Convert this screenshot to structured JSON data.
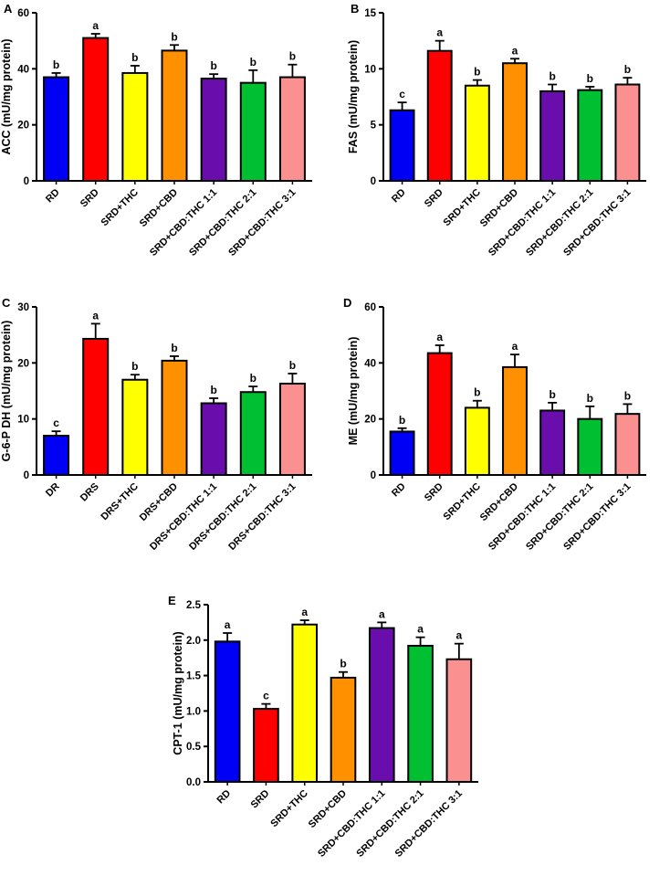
{
  "bar_colors": [
    "#0000f5",
    "#ff0000",
    "#ffff00",
    "#ff9100",
    "#6a0dad",
    "#00bf30",
    "#fa9090"
  ],
  "chart_data": [
    {
      "type": "bar",
      "panel": "A",
      "ylabel": "ACC (mU/mg protein)",
      "ylim": [
        0,
        60
      ],
      "yticks": [
        0,
        20,
        40,
        60
      ],
      "ytick_labels": [
        "0",
        "20",
        "40",
        "60"
      ],
      "categories": [
        "RD",
        "SRD",
        "SRD+THC",
        "SRD+CBD",
        "SRD+CBD:THC 1:1",
        "SRD+CBD:THC 2:1",
        "SRD+CBD:THC 3:1"
      ],
      "values": [
        37,
        51,
        38.5,
        46.5,
        36.5,
        35,
        37
      ],
      "errors": [
        1.5,
        1.5,
        2.6,
        2,
        1.6,
        4.5,
        4.5
      ],
      "sig_letters": [
        "b",
        "a",
        "b",
        "b",
        "b",
        "b",
        "b"
      ]
    },
    {
      "type": "bar",
      "panel": "B",
      "ylabel": "FAS (mU/mg protein)",
      "ylim": [
        0,
        15
      ],
      "yticks": [
        0,
        5,
        10,
        15
      ],
      "ytick_labels": [
        "0",
        "5",
        "10",
        "15"
      ],
      "categories": [
        "RD",
        "SRD",
        "SRD+THC",
        "SRD+CBD",
        "SRD+CBD:THC 1:1",
        "SRD+CBD:THC 2:1",
        "SRD+CBD:THC 3:1"
      ],
      "values": [
        6.3,
        11.6,
        8.5,
        10.5,
        8.0,
        8.1,
        8.6
      ],
      "errors": [
        0.7,
        0.9,
        0.5,
        0.4,
        0.6,
        0.3,
        0.6
      ],
      "sig_letters": [
        "c",
        "a",
        "b",
        "a",
        "b",
        "b",
        "b"
      ]
    },
    {
      "type": "bar",
      "panel": "C",
      "ylabel": "G-6-P DH (mU/mg protein)",
      "ylim": [
        0,
        30
      ],
      "yticks": [
        0,
        10,
        20,
        30
      ],
      "ytick_labels": [
        "0",
        "10",
        "20",
        "30"
      ],
      "categories": [
        "DR",
        "DRS",
        "DRS+THC",
        "DRS+CBD",
        "DRS+CBD:THC 1:1",
        "DRS+CBD:THC 2:1",
        "DRS+CBD:THC 3:1"
      ],
      "values": [
        7.0,
        24.3,
        17.0,
        20.4,
        12.8,
        14.8,
        16.3
      ],
      "errors": [
        0.8,
        2.7,
        0.9,
        0.8,
        0.9,
        1.0,
        1.8
      ],
      "sig_letters": [
        "c",
        "a",
        "b",
        "b",
        "b",
        "b",
        "b"
      ]
    },
    {
      "type": "bar",
      "panel": "D",
      "ylabel": "ME (mU/mg protein)",
      "ylim": [
        0,
        60
      ],
      "yticks": [
        0,
        20,
        40,
        60
      ],
      "ytick_labels": [
        "0",
        "20",
        "40",
        "60"
      ],
      "categories": [
        "RD",
        "SRD",
        "SRD+THC",
        "SRD+CBD",
        "SRD+CBD:THC 1:1",
        "SRD+CBD:THC 2:1",
        "SRD+CBD:THC 3:1"
      ],
      "values": [
        15.5,
        43.5,
        24,
        38.5,
        23,
        20,
        21.8
      ],
      "errors": [
        1.2,
        2.8,
        2.5,
        4.5,
        2.8,
        4.5,
        3.5
      ],
      "sig_letters": [
        "b",
        "a",
        "b",
        "a",
        "b",
        "b",
        "b"
      ]
    },
    {
      "type": "bar",
      "panel": "E",
      "ylabel": "CPT-1 (mU/mg protein)",
      "ylim": [
        0,
        2.5
      ],
      "yticks": [
        0,
        0.5,
        1,
        1.5,
        2,
        2.5
      ],
      "ytick_labels": [
        "0.0",
        "0.5",
        "1.0",
        "1.5",
        "2.0",
        "2.5"
      ],
      "categories": [
        "RD",
        "SRD",
        "SRD+THC",
        "SRD+CBD",
        "SRD+CBD:THC 1:1",
        "SRD+CBD:THC 2:1",
        "SRD+CBD:THC 3:1"
      ],
      "values": [
        1.98,
        1.03,
        2.22,
        1.47,
        2.17,
        1.92,
        1.73
      ],
      "errors": [
        0.12,
        0.07,
        0.06,
        0.08,
        0.08,
        0.12,
        0.22
      ],
      "sig_letters": [
        "a",
        "c",
        "a",
        "b",
        "a",
        "a",
        "a"
      ]
    }
  ]
}
